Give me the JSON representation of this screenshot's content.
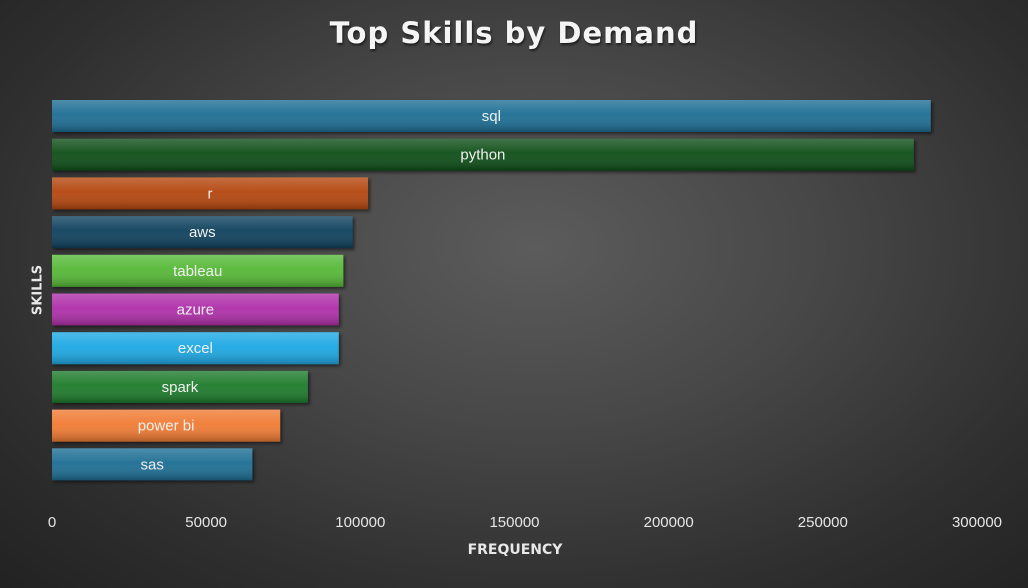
{
  "chart_data": {
    "type": "bar",
    "orientation": "horizontal",
    "title": "Top Skills by Demand",
    "xlabel": "FREQUENCY",
    "ylabel": "SKILLS",
    "xlim": [
      0,
      300000
    ],
    "xticks": [
      0,
      50000,
      100000,
      150000,
      200000,
      250000,
      300000
    ],
    "grid": false,
    "legend": "none",
    "categories": [
      "sql",
      "python",
      "r",
      "aws",
      "tableau",
      "azure",
      "excel",
      "spark",
      "power bi",
      "sas"
    ],
    "values": [
      285000,
      279500,
      102500,
      97500,
      94500,
      93000,
      93000,
      83000,
      74000,
      65000
    ],
    "colors": [
      "#1a6d93",
      "#0c4d18",
      "#b4450e",
      "#0f3f5b",
      "#54b835",
      "#ae2fa8",
      "#1aa7e3",
      "#1c7a2a",
      "#f07a30",
      "#1a6d93"
    ]
  }
}
